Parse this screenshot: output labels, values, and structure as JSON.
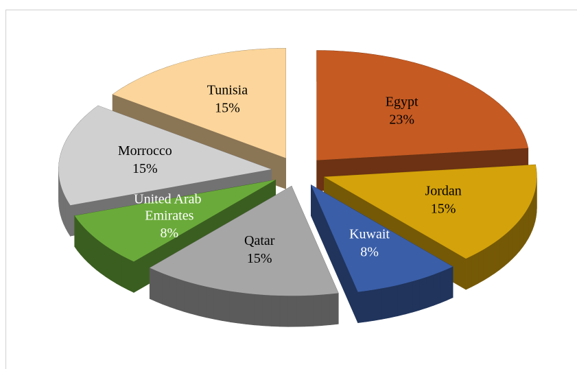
{
  "chart_data": {
    "type": "pie",
    "categories": [
      "Egypt",
      "Jordan",
      "Kuwait",
      "Qatar",
      "United Arab Emirates",
      "Morrocco",
      "Tunisia"
    ],
    "values": [
      23,
      15,
      8,
      15,
      8,
      15,
      15
    ],
    "value_labels": [
      "23%",
      "15%",
      "8%",
      "15%",
      "8%",
      "15%",
      "15%"
    ],
    "colors": [
      "#c55a22",
      "#d4a20a",
      "#3a5ea8",
      "#a6a6a6",
      "#6aaa3a",
      "#d0d0d0",
      "#fbd59b"
    ],
    "label_colors": [
      "#000000",
      "#000000",
      "#ffffff",
      "#000000",
      "#ffffff",
      "#000000",
      "#000000"
    ]
  }
}
